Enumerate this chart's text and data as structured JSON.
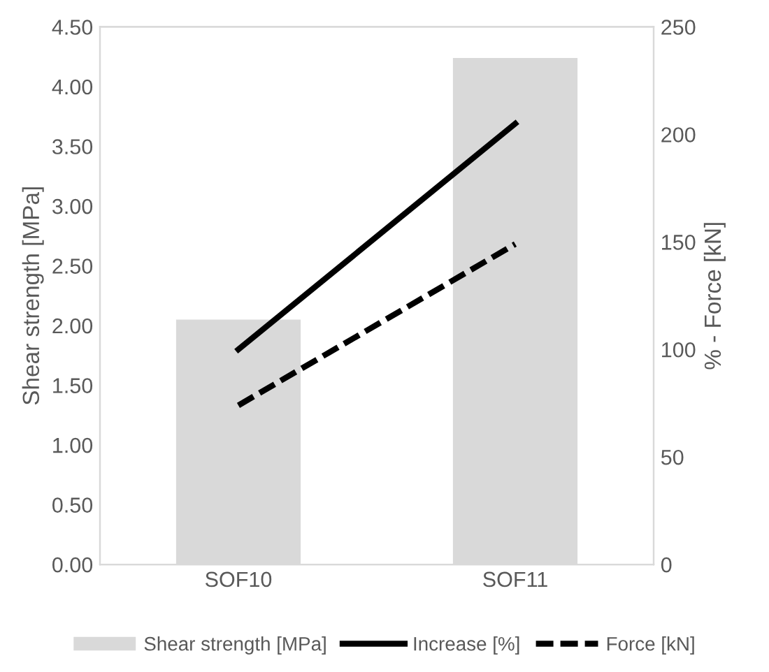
{
  "chart_data": {
    "type": "bar",
    "categories": [
      "SOF10",
      "SOF11"
    ],
    "ylabel": "Shear strength [MPa]",
    "y2label": "% - Force [kN]",
    "series": [
      {
        "name": "Shear strength [MPa]",
        "color": "#d9d9d9",
        "values": [
          2.05,
          4.24
        ]
      },
      {
        "name": "Increase [%]",
        "type": "line",
        "color": "#000000",
        "axis": "y2",
        "line_style": "solid",
        "values": [
          100,
          205
        ]
      },
      {
        "name": "Force [kN]",
        "type": "line",
        "color": "#000000",
        "axis": "y2",
        "line_style": "dashed",
        "values": [
          74,
          149
        ]
      }
    ],
    "ylim": [
      0,
      4.5
    ],
    "yticks": [
      {
        "value": 0,
        "label": "0.00"
      },
      {
        "value": 0.5,
        "label": "0.50"
      },
      {
        "value": 1,
        "label": "1.00"
      },
      {
        "value": 1.5,
        "label": "1.50"
      },
      {
        "value": 2,
        "label": "2.00"
      },
      {
        "value": 2.5,
        "label": "2.50"
      },
      {
        "value": 3,
        "label": "3.00"
      },
      {
        "value": 3.5,
        "label": "3.50"
      },
      {
        "value": 4,
        "label": "4.00"
      },
      {
        "value": 4.5,
        "label": "4.50"
      }
    ],
    "y2lim": [
      0,
      250
    ],
    "y2ticks": [
      0,
      50,
      100,
      150,
      200,
      250
    ],
    "grid": false,
    "legend": "bottom",
    "marker": "none"
  }
}
